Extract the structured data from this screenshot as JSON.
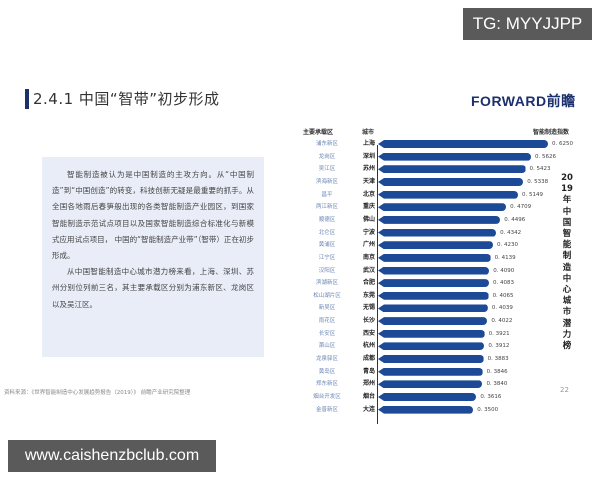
{
  "overlay": {
    "tg_badge": "TG: MYYJJPP",
    "site_badge": "www.caishenzbclub.com"
  },
  "slide": {
    "title": "2.4.1 中国“智带”初步形成",
    "logo": "FORWARD前瞻",
    "paragraph_1": "智能制造被认为是中国制造的主攻方向。从“中国制造”到“中国创造”的转变，科技创新无疑是最重要的抓手。从全国各地雨后春笋般出现的各类智能制造产业园区，到国家智能制造示范试点项目以及国家智能制造综合标准化与新模式应用试点项目， 中国的“智能制造产业带”（智带）正在初步形成。",
    "paragraph_2": "从中国智能制造中心城市潜力榜来看，上海、深圳、苏州分别位列前三名，其主要承载区分别为浦东新区、龙岗区以及吴江区。",
    "source": "资料来源：《世界智能制造中心发展趋势报告（2019）》 前瞻产业研究院整理",
    "page_number": "22"
  },
  "chart_data": {
    "type": "bar",
    "orientation": "horizontal",
    "title": "2019年中国智能制造中心城市潜力榜",
    "column_headers": {
      "zone": "主要承载区",
      "city": "城市",
      "value": "智能制造指数"
    },
    "bar_color": "#1d4a96",
    "categories": [
      "上海",
      "深圳",
      "苏州",
      "天津",
      "北京",
      "重庆",
      "佛山",
      "宁波",
      "广州",
      "南京",
      "武汉",
      "合肥",
      "东莞",
      "无锡",
      "长沙",
      "西安",
      "杭州",
      "成都",
      "青岛",
      "郑州",
      "烟台",
      "大连"
    ],
    "zones": [
      "浦东新区",
      "龙岗区",
      "吴江区",
      "滨海新区",
      "昌平",
      "两江新区",
      "顺德区",
      "北仑区",
      "黄浦区",
      "江宁区",
      "汉阳区",
      "滨湖新区",
      "松山湖片区",
      "新吴区",
      "雨花区",
      "长安区",
      "萧山区",
      "龙泉驿区",
      "黄岛区",
      "郑东新区",
      "烟台开发区",
      "金普新区"
    ],
    "values": [
      0.625,
      0.5626,
      0.5423,
      0.5338,
      0.5149,
      0.4709,
      0.4496,
      0.4342,
      0.423,
      0.4139,
      0.409,
      0.4083,
      0.4065,
      0.4039,
      0.4022,
      0.3921,
      0.3912,
      0.3883,
      0.3846,
      0.384,
      0.3616,
      0.35
    ],
    "value_labels": [
      "0. 6250",
      "0. 5626",
      "0. 5423",
      "0. 5338",
      "0. 5149",
      "0. 4709",
      "0. 4496",
      "0. 4342",
      "0. 4230",
      "0. 4139",
      "0. 4090",
      "0. 4083",
      "0. 4065",
      "0. 4039",
      "0. 4022",
      "0. 3921",
      "0. 3912",
      "0. 3883",
      "0. 3846",
      "0. 3840",
      "0. 3616",
      "0. 3500"
    ],
    "xlabel": "",
    "ylabel": "",
    "grid": false,
    "legend": false
  }
}
